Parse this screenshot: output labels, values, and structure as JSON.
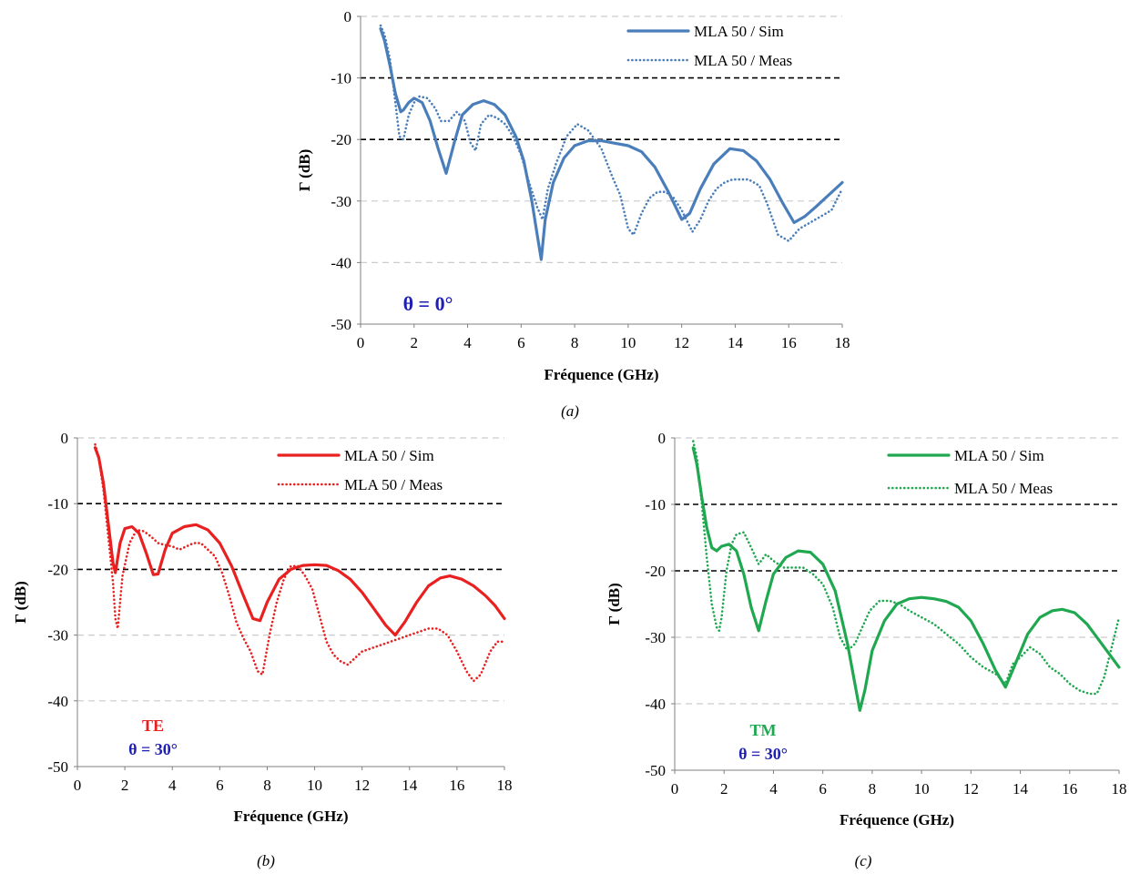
{
  "chart_data": [
    {
      "type": "line",
      "caption": "(a)",
      "xlabel": "Fréquence (GHz)",
      "ylabel": "Γ (dB)",
      "xlim": [
        0,
        18
      ],
      "ylim": [
        -50,
        0
      ],
      "xticks": [
        0,
        2,
        4,
        6,
        8,
        10,
        12,
        14,
        16,
        18
      ],
      "yticks": [
        0,
        -10,
        -20,
        -30,
        -40,
        -50
      ],
      "reference_lines": [
        -10,
        -20
      ],
      "grid": "horizontal dashed",
      "legend_position": "top-right",
      "annotations": [
        {
          "text": "θ = 0°",
          "color": "#1F1FB4"
        }
      ],
      "series": [
        {
          "name": "MLA 50 / Sim",
          "style": "solid",
          "color": "#4A7EBB",
          "x": [
            0.75,
            0.9,
            1.1,
            1.3,
            1.5,
            1.6,
            1.8,
            2.0,
            2.3,
            2.6,
            2.9,
            3.2,
            3.5,
            3.8,
            4.2,
            4.6,
            5.0,
            5.4,
            5.8,
            6.1,
            6.4,
            6.6,
            6.75,
            6.9,
            7.2,
            7.6,
            8.0,
            8.5,
            9.0,
            9.5,
            10.0,
            10.5,
            11.0,
            11.5,
            12.0,
            12.3,
            12.7,
            13.2,
            13.8,
            14.3,
            14.8,
            15.3,
            15.8,
            16.2,
            16.6,
            17.0,
            17.5,
            18.0
          ],
          "values": [
            -2,
            -4,
            -8,
            -12.5,
            -15.5,
            -15.2,
            -14,
            -13.3,
            -14,
            -17,
            -21.5,
            -25.5,
            -20.5,
            -16,
            -14.3,
            -13.7,
            -14.3,
            -16,
            -19.5,
            -23.5,
            -30,
            -35.5,
            -39.5,
            -33,
            -27,
            -23,
            -21,
            -20.2,
            -20.2,
            -20.6,
            -21,
            -22,
            -24.5,
            -28.5,
            -33,
            -32,
            -28,
            -24,
            -21.5,
            -21.8,
            -23.5,
            -26.5,
            -30.5,
            -33.5,
            -32.5,
            -31,
            -29,
            -27
          ]
        },
        {
          "name": "MLA 50 / Meas",
          "style": "dotted",
          "color": "#4A7EBB",
          "x": [
            0.75,
            0.9,
            1.1,
            1.3,
            1.45,
            1.6,
            1.8,
            2.0,
            2.2,
            2.5,
            2.8,
            3.0,
            3.3,
            3.6,
            3.9,
            4.1,
            4.3,
            4.5,
            4.8,
            5.1,
            5.4,
            5.7,
            6.0,
            6.3,
            6.6,
            6.8,
            7.0,
            7.3,
            7.7,
            8.1,
            8.5,
            9.0,
            9.4,
            9.7,
            10.0,
            10.2,
            10.5,
            10.8,
            11.1,
            11.4,
            11.7,
            12.0,
            12.4,
            12.7,
            13.0,
            13.3,
            13.6,
            13.9,
            14.2,
            14.5,
            14.9,
            15.2,
            15.6,
            16.0,
            16.4,
            16.8,
            17.2,
            17.6,
            18.0
          ],
          "values": [
            -1.5,
            -3,
            -7,
            -14,
            -19.5,
            -20,
            -16,
            -14,
            -13,
            -13.3,
            -15,
            -17,
            -17,
            -15.5,
            -17,
            -20.5,
            -21.8,
            -17.5,
            -16,
            -16.5,
            -17.5,
            -19.5,
            -22.5,
            -27,
            -31,
            -33,
            -28,
            -24,
            -19.5,
            -17.5,
            -18.5,
            -21.5,
            -26,
            -29,
            -34.5,
            -35.5,
            -32,
            -29.5,
            -28.5,
            -28.5,
            -29.5,
            -31.5,
            -35,
            -33,
            -30,
            -28,
            -27,
            -26.5,
            -26.5,
            -26.5,
            -27.5,
            -30.5,
            -35.5,
            -36.5,
            -34.5,
            -33.5,
            -32.5,
            -31.5,
            -28
          ]
        }
      ]
    },
    {
      "type": "line",
      "caption": "(b)",
      "xlabel": "Fréquence (GHz)",
      "ylabel": "Γ (dB)",
      "xlim": [
        0,
        18
      ],
      "ylim": [
        -50,
        0
      ],
      "xticks": [
        0,
        2,
        4,
        6,
        8,
        10,
        12,
        14,
        16,
        18
      ],
      "yticks": [
        0,
        -10,
        -20,
        -30,
        -40,
        -50
      ],
      "reference_lines": [
        -10,
        -20
      ],
      "grid": "horizontal dashed",
      "legend_position": "top-right",
      "annotations": [
        {
          "text": "TE",
          "color": "#E82020"
        },
        {
          "text": "θ = 30°",
          "color": "#1F1FB4"
        }
      ],
      "series": [
        {
          "name": "MLA 50 / Sim",
          "style": "solid",
          "color": "#E82020",
          "x": [
            0.75,
            0.9,
            1.1,
            1.3,
            1.5,
            1.6,
            1.8,
            2.0,
            2.3,
            2.6,
            2.9,
            3.2,
            3.4,
            3.7,
            4.0,
            4.5,
            5.0,
            5.5,
            6.0,
            6.5,
            7.0,
            7.4,
            7.7,
            8.0,
            8.5,
            9.0,
            9.5,
            10.0,
            10.5,
            11.0,
            11.5,
            12.0,
            12.5,
            13.0,
            13.4,
            13.8,
            14.3,
            14.8,
            15.3,
            15.7,
            16.2,
            16.7,
            17.2,
            17.6,
            18.0
          ],
          "values": [
            -1.5,
            -3,
            -7,
            -13,
            -19,
            -20.5,
            -16,
            -13.8,
            -13.5,
            -14.5,
            -17.5,
            -20.8,
            -20.7,
            -17,
            -14.5,
            -13.5,
            -13.2,
            -14,
            -16,
            -19.5,
            -24,
            -27.5,
            -27.8,
            -25,
            -21.5,
            -20,
            -19.4,
            -19.3,
            -19.4,
            -20.2,
            -21.5,
            -23.5,
            -26,
            -28.5,
            -30,
            -28,
            -25,
            -22.5,
            -21.3,
            -21,
            -21.5,
            -22.5,
            -24,
            -25.5,
            -27.5
          ]
        },
        {
          "name": "MLA 50 / Meas",
          "style": "dotted",
          "color": "#E82020",
          "x": [
            0.75,
            0.9,
            1.1,
            1.3,
            1.5,
            1.6,
            1.7,
            1.9,
            2.2,
            2.5,
            2.8,
            3.1,
            3.4,
            3.7,
            4.0,
            4.3,
            4.6,
            4.9,
            5.2,
            5.5,
            5.8,
            6.1,
            6.4,
            6.7,
            7.0,
            7.3,
            7.6,
            7.8,
            8.1,
            8.4,
            8.7,
            9.0,
            9.3,
            9.6,
            9.9,
            10.2,
            10.5,
            10.8,
            11.1,
            11.4,
            11.7,
            12.0,
            12.4,
            12.8,
            13.2,
            13.6,
            14.0,
            14.4,
            14.8,
            15.2,
            15.6,
            16.0,
            16.4,
            16.7,
            17.0,
            17.4,
            17.7,
            18.0
          ],
          "values": [
            -1,
            -3,
            -8,
            -15,
            -22,
            -27.5,
            -29,
            -21,
            -16,
            -14,
            -14.2,
            -15,
            -16,
            -16.3,
            -16.5,
            -17,
            -16.5,
            -16,
            -16,
            -17,
            -18,
            -20.5,
            -24,
            -28,
            -30.5,
            -32.5,
            -35.5,
            -36,
            -30,
            -25,
            -21.5,
            -19.5,
            -19.5,
            -21,
            -23,
            -27,
            -31,
            -33,
            -34,
            -34.5,
            -33.5,
            -32.5,
            -32,
            -31.5,
            -31,
            -30.5,
            -30,
            -29.5,
            -29,
            -29,
            -30,
            -32.5,
            -35.5,
            -37,
            -36,
            -32.5,
            -31,
            -31
          ]
        }
      ]
    },
    {
      "type": "line",
      "caption": "(c)",
      "xlabel": "Fréquence (GHz)",
      "ylabel": "Γ (dB)",
      "xlim": [
        0,
        18
      ],
      "ylim": [
        -50,
        0
      ],
      "xticks": [
        0,
        2,
        4,
        6,
        8,
        10,
        12,
        14,
        16,
        18
      ],
      "yticks": [
        0,
        -10,
        -20,
        -30,
        -40,
        -50
      ],
      "reference_lines": [
        -10,
        -20
      ],
      "grid": "horizontal dashed",
      "legend_position": "top-right",
      "annotations": [
        {
          "text": "TM",
          "color": "#20A850"
        },
        {
          "text": "θ = 30°",
          "color": "#1F1FB4"
        }
      ],
      "series": [
        {
          "name": "MLA 50 / Sim",
          "style": "solid",
          "color": "#20A850",
          "x": [
            0.75,
            0.9,
            1.1,
            1.3,
            1.5,
            1.7,
            1.9,
            2.2,
            2.5,
            2.8,
            3.1,
            3.4,
            3.7,
            4.0,
            4.5,
            5.0,
            5.5,
            6.0,
            6.5,
            7.0,
            7.3,
            7.5,
            7.7,
            8.0,
            8.5,
            9.0,
            9.5,
            10.0,
            10.5,
            11.0,
            11.5,
            12.0,
            12.5,
            13.0,
            13.4,
            13.8,
            14.3,
            14.8,
            15.3,
            15.7,
            16.2,
            16.7,
            17.2,
            17.6,
            18.0
          ],
          "values": [
            -1.5,
            -4,
            -9,
            -13.5,
            -16.5,
            -17,
            -16.3,
            -16,
            -17,
            -20.5,
            -25.5,
            -29,
            -24.5,
            -20.5,
            -18,
            -17,
            -17.2,
            -19,
            -23,
            -31,
            -37,
            -41,
            -38,
            -32,
            -27.5,
            -25,
            -24.2,
            -24,
            -24.2,
            -24.6,
            -25.5,
            -27.5,
            -31,
            -35,
            -37.5,
            -34,
            -29.5,
            -27,
            -26,
            -25.8,
            -26.3,
            -28,
            -30.5,
            -32.5,
            -34.5
          ]
        },
        {
          "name": "MLA 50 / Meas",
          "style": "dotted",
          "color": "#20A850",
          "x": [
            0.75,
            0.9,
            1.1,
            1.3,
            1.5,
            1.7,
            1.8,
            1.9,
            2.1,
            2.3,
            2.5,
            2.8,
            3.1,
            3.4,
            3.7,
            4.0,
            4.4,
            4.8,
            5.2,
            5.6,
            6.0,
            6.4,
            6.7,
            7.0,
            7.3,
            7.6,
            7.9,
            8.3,
            8.7,
            9.1,
            9.5,
            10.0,
            10.5,
            11.0,
            11.5,
            12.0,
            12.5,
            13.0,
            13.4,
            13.7,
            14.0,
            14.4,
            14.8,
            15.2,
            15.6,
            16.0,
            16.4,
            16.8,
            17.1,
            17.4,
            17.7,
            18.0
          ],
          "values": [
            -0.5,
            -3,
            -10,
            -18,
            -25,
            -28.5,
            -29,
            -27,
            -20,
            -16,
            -14.5,
            -14.2,
            -16.5,
            -19,
            -17.5,
            -18.5,
            -19.5,
            -19.5,
            -19.5,
            -20.5,
            -22,
            -25.5,
            -30,
            -32,
            -31,
            -28.5,
            -26,
            -24.5,
            -24.5,
            -25,
            -26,
            -27,
            -28,
            -29.5,
            -31,
            -33,
            -34.5,
            -35.5,
            -37,
            -34,
            -33,
            -31.5,
            -32.5,
            -34.5,
            -35.5,
            -37,
            -38,
            -38.5,
            -38.5,
            -36,
            -31.5,
            -27
          ]
        }
      ]
    }
  ]
}
